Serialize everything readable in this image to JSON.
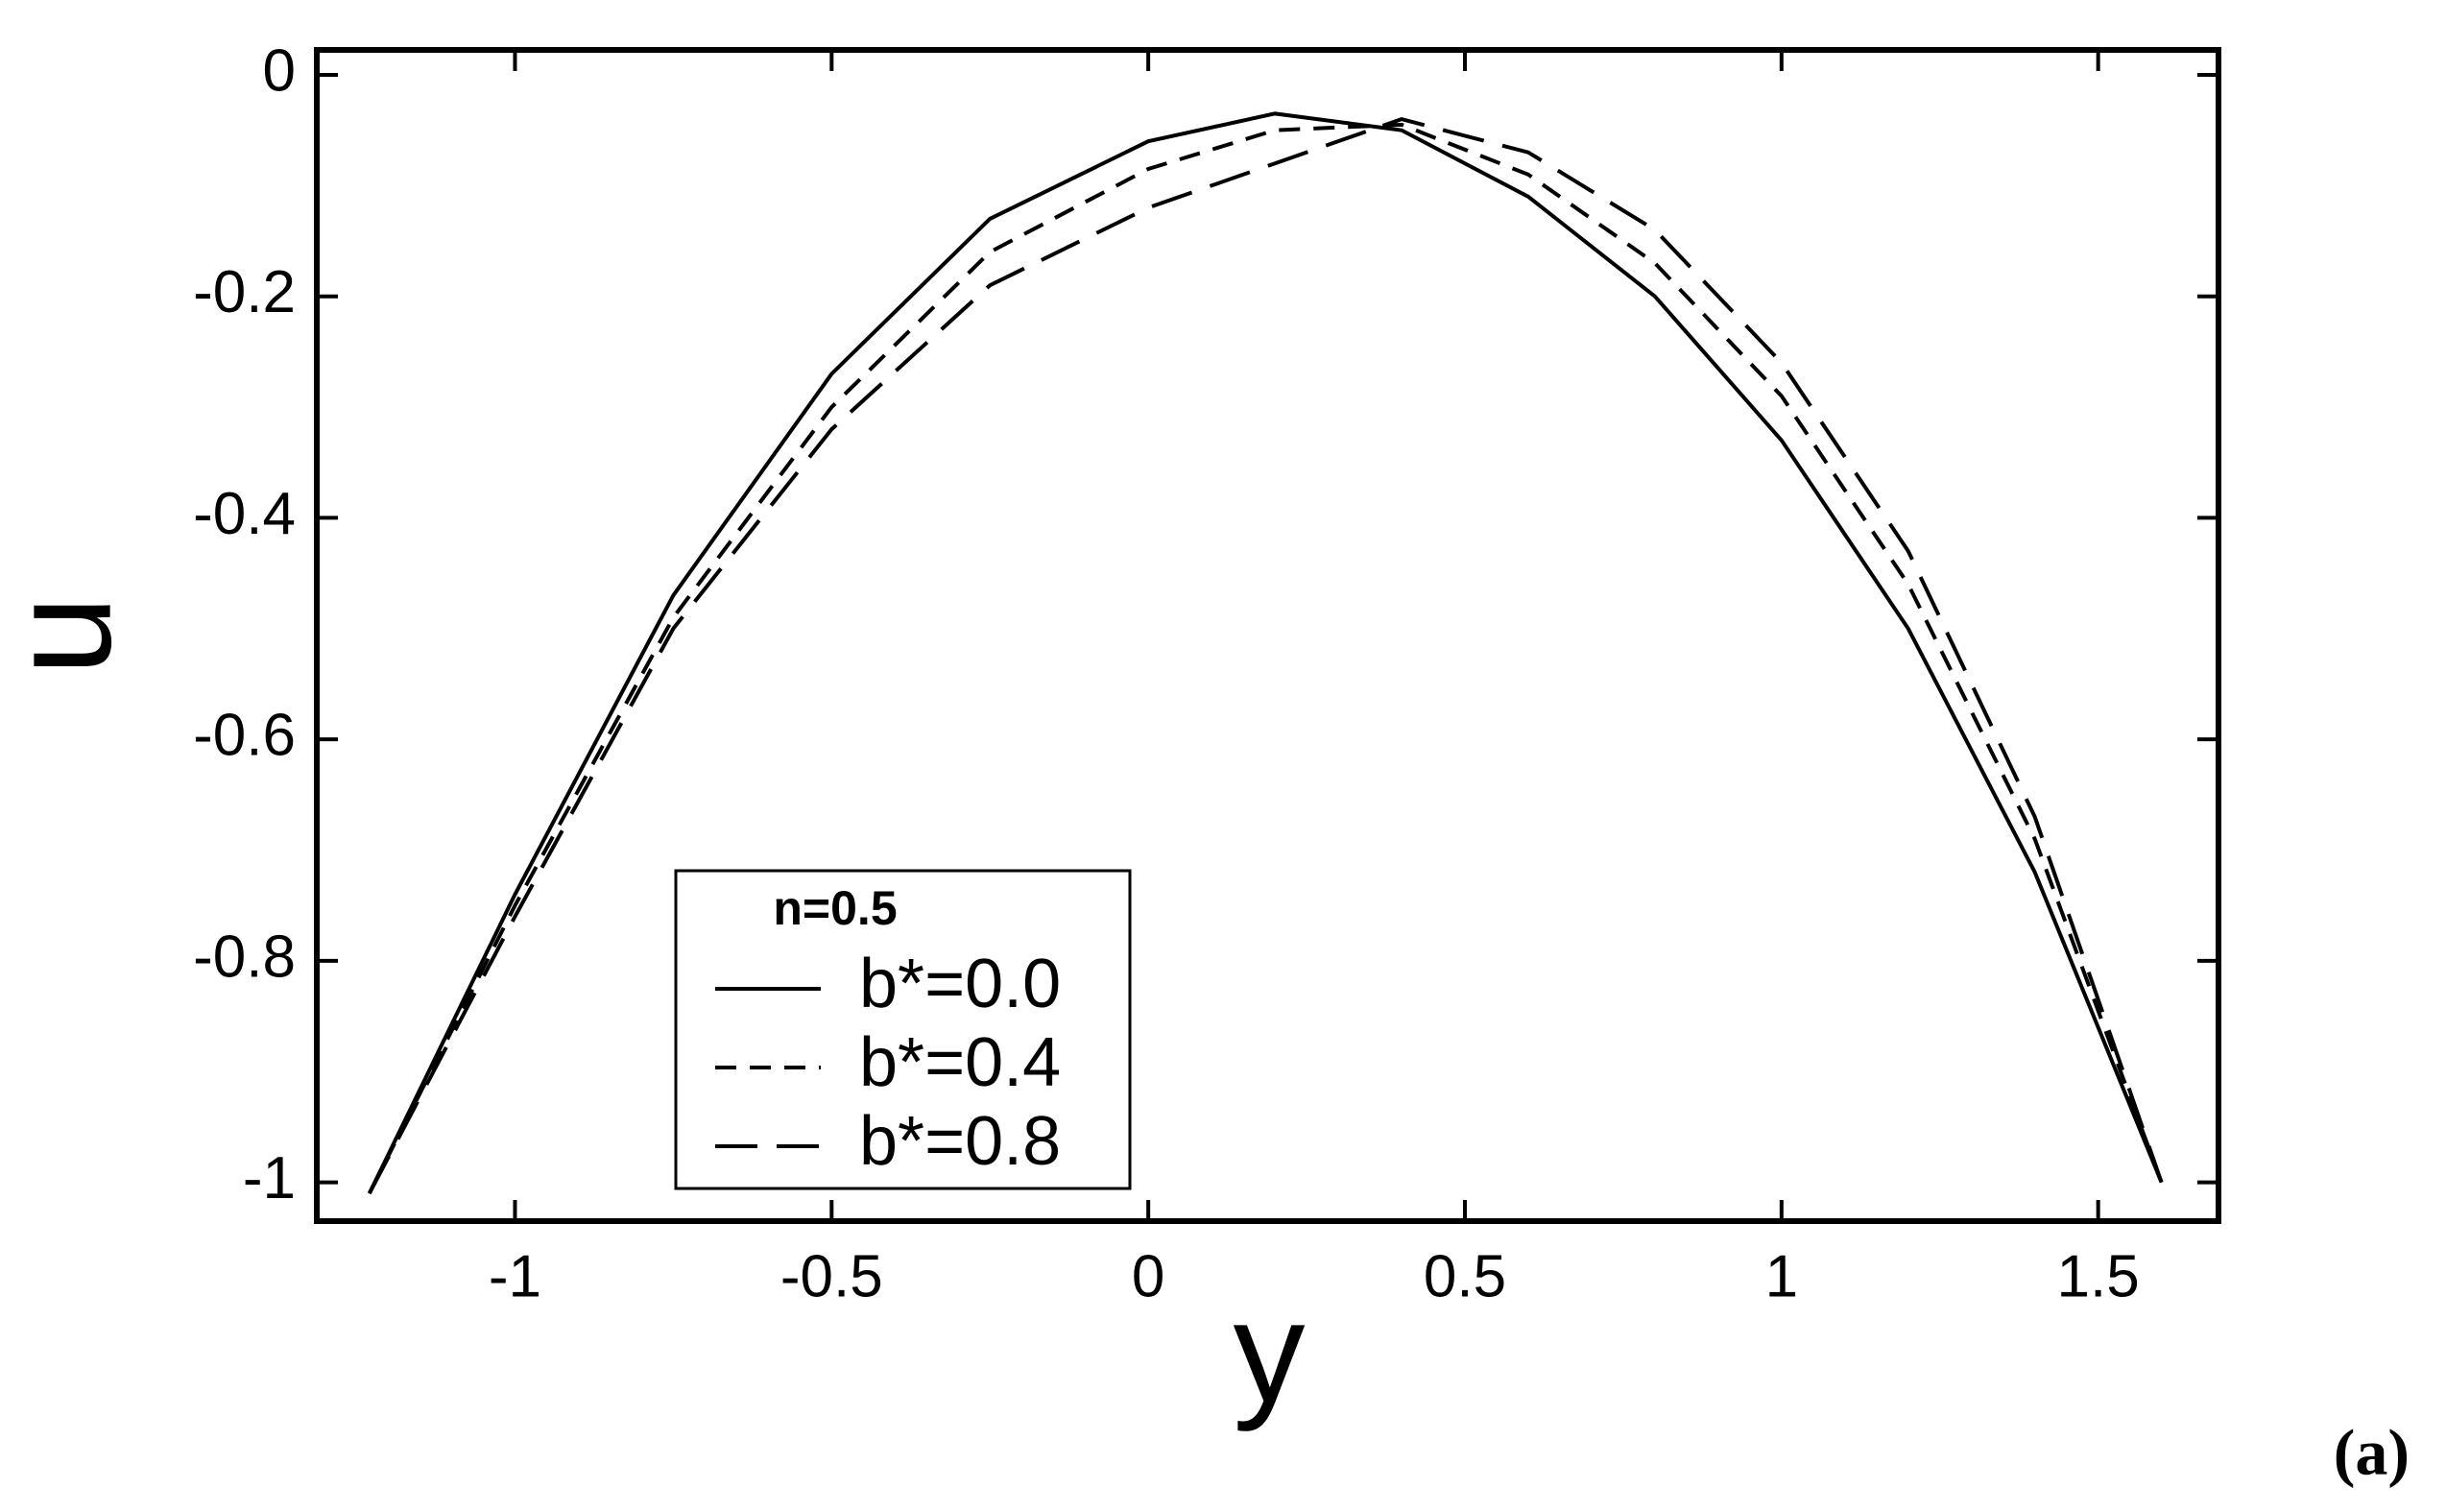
{
  "chart_data": {
    "type": "line",
    "x_label": "y",
    "y_label": "u",
    "panel_label": "(a)",
    "legend_title": "n=0.5",
    "x": [
      -1.23,
      -1.0,
      -0.75,
      -0.5,
      -0.25,
      0,
      0.2,
      0.4,
      0.6,
      0.8,
      1.0,
      1.2,
      1.4,
      1.6
    ],
    "series": [
      {
        "name": "b*=0.0",
        "color": "#000000",
        "line_style": "solid",
        "values": [
          -1.01,
          -0.74,
          -0.47,
          -0.27,
          -0.13,
          -0.06,
          -0.035,
          -0.05,
          -0.11,
          -0.2,
          -0.33,
          -0.5,
          -0.72,
          -1.0
        ]
      },
      {
        "name": "b*=0.4",
        "color": "#000000",
        "line_style": "short-dash",
        "values": [
          -1.01,
          -0.75,
          -0.49,
          -0.3,
          -0.16,
          -0.085,
          -0.05,
          -0.045,
          -0.09,
          -0.17,
          -0.29,
          -0.46,
          -0.69,
          -1.0
        ]
      },
      {
        "name": "b*=0.8",
        "color": "#000000",
        "line_style": "long-dash",
        "values": [
          -1.01,
          -0.76,
          -0.5,
          -0.32,
          -0.19,
          -0.12,
          -0.08,
          -0.04,
          -0.07,
          -0.14,
          -0.26,
          -0.43,
          -0.67,
          -1.0
        ]
      }
    ],
    "xlim": [
      -1.313,
      1.69
    ],
    "ylim": [
      -1.035,
      0.0225
    ],
    "xticks": [
      -1,
      -0.5,
      0,
      0.5,
      1,
      1.5
    ],
    "yticks": [
      0,
      -0.2,
      -0.4,
      -0.6,
      -0.8,
      -1
    ],
    "legend": "lower-left"
  }
}
